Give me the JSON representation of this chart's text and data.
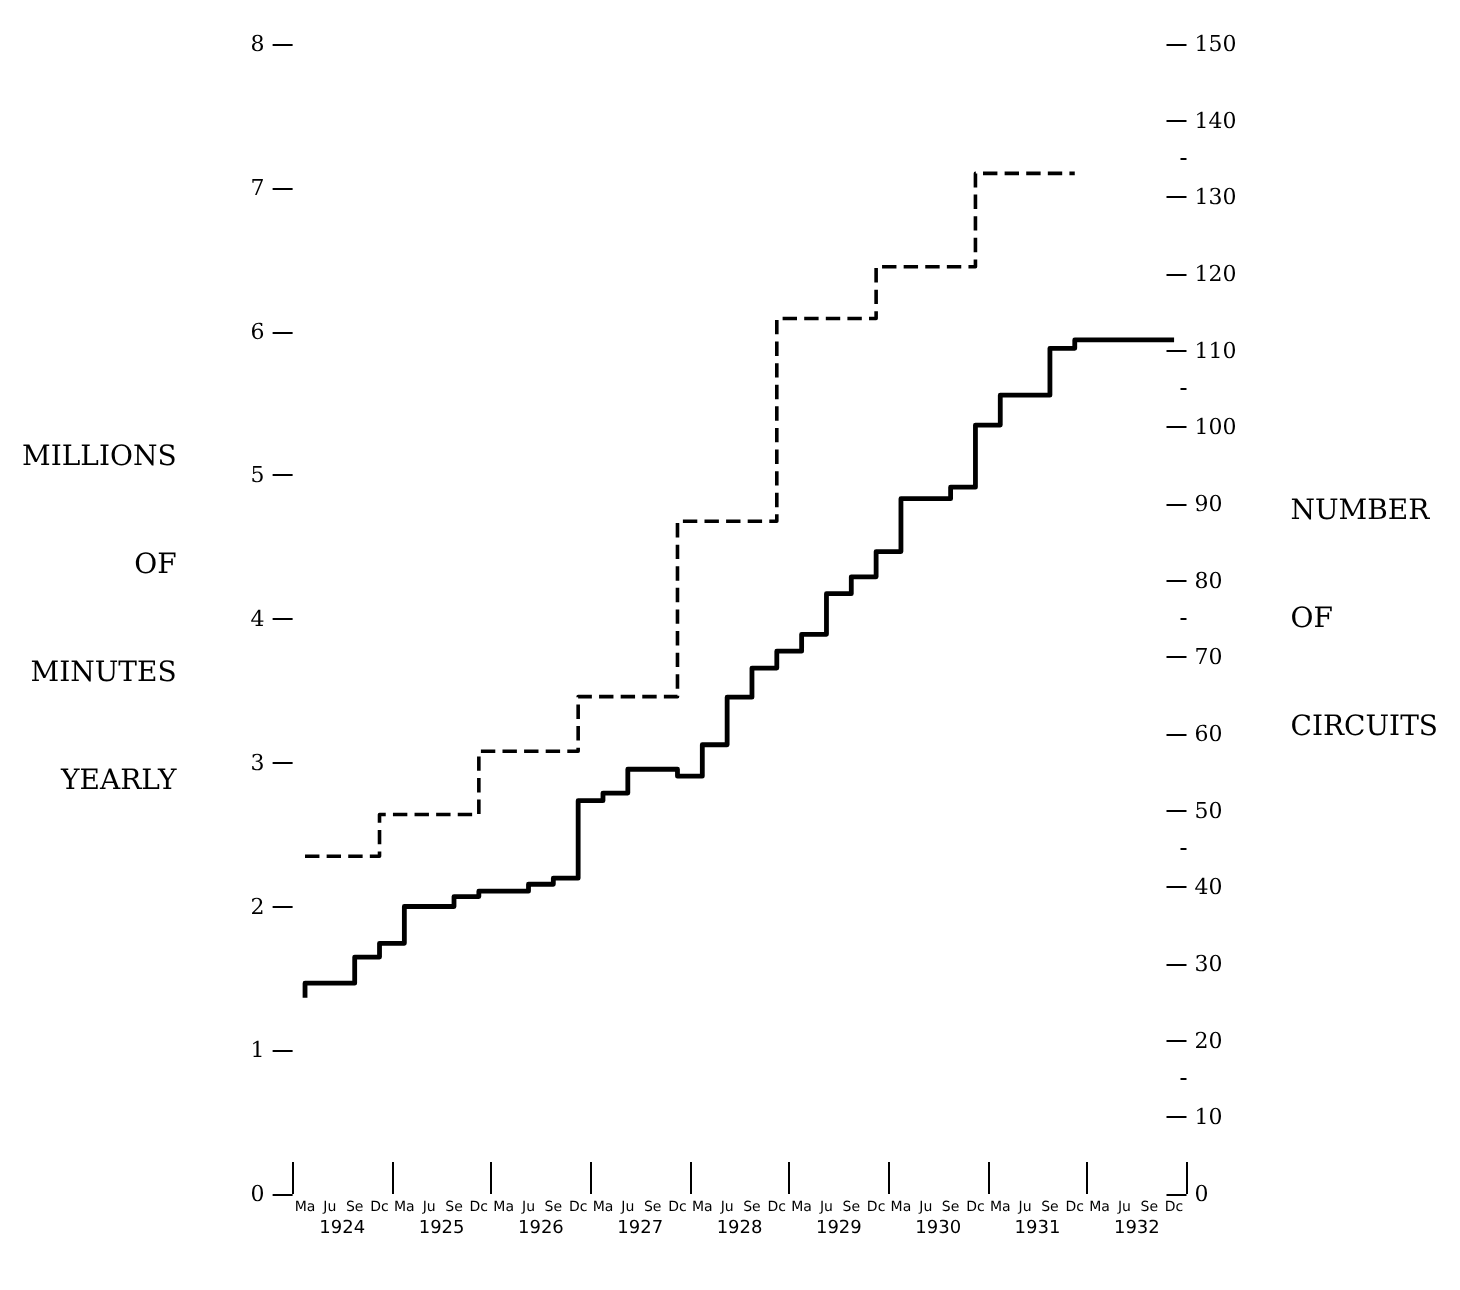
{
  "chart_data": {
    "type": "step",
    "categories": [
      "Ma",
      "Ju",
      "Se",
      "Dc",
      "Ma",
      "Ju",
      "Se",
      "Dc",
      "Ma",
      "Ju",
      "Se",
      "Dc",
      "Ma",
      "Ju",
      "Se",
      "Dc",
      "Ma",
      "Ju",
      "Se",
      "Dc",
      "Ma",
      "Ju",
      "Se",
      "Dc",
      "Ma",
      "Ju",
      "Se",
      "Dc",
      "Ma",
      "Ju",
      "Se",
      "Dc",
      "Ma",
      "Ju",
      "Se",
      "Dc"
    ],
    "annotations": [
      "1924",
      "1925",
      "1926",
      "1927",
      "1928",
      "1929",
      "1930",
      "1931",
      "1932"
    ],
    "ylabel": "MILLIONS OF MINUTES YEARLY",
    "y2label": "NUMBER OF CIRCUITS",
    "ylim": [
      0,
      8
    ],
    "yticks": [
      0,
      1,
      2,
      3,
      4,
      5,
      6,
      7,
      8
    ],
    "y2lim": [
      0,
      150
    ],
    "y2ticks": [
      0,
      10,
      20,
      30,
      40,
      50,
      60,
      70,
      80,
      90,
      100,
      110,
      120,
      130,
      140,
      150
    ],
    "grid": false,
    "marker": "none",
    "series": [
      {
        "color": "#000000",
        "line_style": "dashed",
        "values": [
          2.35,
          2.35,
          2.35,
          2.35,
          2.64,
          2.64,
          2.64,
          2.64,
          3.08,
          3.08,
          3.08,
          3.08,
          3.46,
          3.46,
          3.46,
          3.46,
          4.68,
          4.68,
          4.68,
          4.68,
          6.09,
          6.09,
          6.09,
          6.09,
          6.45,
          6.45,
          6.45,
          6.45,
          7.1,
          7.1,
          7.1,
          7.1,
          null,
          null,
          null,
          null
        ]
      },
      {
        "color": "#000000",
        "line_style": "solid",
        "axis": "y2",
        "values": [
          25.6,
          27.5,
          27.5,
          30.9,
          32.7,
          37.5,
          37.5,
          38.8,
          39.5,
          39.5,
          40.4,
          41.2,
          51.3,
          52.3,
          55.4,
          55.4,
          54.5,
          58.6,
          64.8,
          68.6,
          70.8,
          73,
          78.3,
          80.5,
          83.8,
          90.7,
          90.7,
          92.2,
          100.3,
          104.2,
          104.2,
          110.3,
          111.4,
          111.4,
          111.4,
          111.4
        ]
      }
    ]
  }
}
